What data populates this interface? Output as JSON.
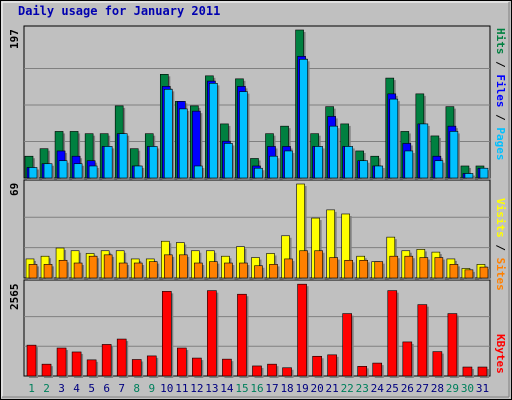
{
  "chart_data": [
    {
      "type": "bar",
      "title": "Daily usage for January 2011",
      "ylabel_max": "197",
      "legend": [
        "Pages",
        "Files",
        "Hits"
      ],
      "colors": {
        "hits": "#008040",
        "files": "#0000FF",
        "pages": "#00C0FF"
      },
      "categories": [
        "1",
        "2",
        "3",
        "4",
        "5",
        "6",
        "7",
        "8",
        "9",
        "10",
        "11",
        "12",
        "13",
        "14",
        "15",
        "16",
        "17",
        "18",
        "19",
        "20",
        "21",
        "22",
        "23",
        "24",
        "25",
        "26",
        "27",
        "28",
        "29",
        "30",
        "31"
      ],
      "weekend_days": [
        "1",
        "2",
        "8",
        "9",
        "15",
        "16",
        "22",
        "23",
        "29",
        "30"
      ],
      "ylim": [
        0,
        197
      ],
      "series": [
        {
          "name": "Hits",
          "values": [
            29,
            39,
            62,
            62,
            59,
            59,
            96,
            39,
            59,
            138,
            102,
            96,
            136,
            72,
            132,
            26,
            59,
            69,
            197,
            59,
            95,
            72,
            36,
            29,
            133,
            62,
            112,
            56,
            95,
            16,
            16
          ]
        },
        {
          "name": "Files",
          "values": [
            14,
            19,
            36,
            29,
            23,
            42,
            59,
            16,
            42,
            122,
            102,
            89,
            129,
            49,
            122,
            16,
            42,
            42,
            162,
            42,
            82,
            42,
            23,
            16,
            112,
            46,
            72,
            29,
            69,
            6,
            13
          ]
        },
        {
          "name": "Pages",
          "values": [
            14,
            19,
            23,
            19,
            16,
            42,
            59,
            16,
            42,
            118,
            92,
            16,
            126,
            46,
            115,
            13,
            29,
            36,
            158,
            42,
            69,
            42,
            23,
            16,
            105,
            36,
            72,
            23,
            62,
            6,
            13
          ]
        }
      ]
    },
    {
      "type": "bar",
      "ylabel_max": "69",
      "legend": [
        "Sites",
        "Visits"
      ],
      "colors": {
        "visits": "#FFFF00",
        "sites": "#FF8000"
      },
      "categories": [
        "1",
        "2",
        "3",
        "4",
        "5",
        "6",
        "7",
        "8",
        "9",
        "10",
        "11",
        "12",
        "13",
        "14",
        "15",
        "16",
        "17",
        "18",
        "19",
        "20",
        "21",
        "22",
        "23",
        "24",
        "25",
        "26",
        "27",
        "28",
        "29",
        "30",
        "31"
      ],
      "ylim": [
        0,
        69
      ],
      "series": [
        {
          "name": "Visits",
          "values": [
            14,
            16,
            22,
            20,
            18,
            20,
            20,
            14,
            14,
            27,
            26,
            20,
            20,
            16,
            23,
            15,
            18,
            31,
            69,
            44,
            50,
            47,
            16,
            12,
            30,
            20,
            21,
            19,
            14,
            7,
            10
          ]
        },
        {
          "name": "Sites",
          "values": [
            10,
            10,
            13,
            11,
            16,
            17,
            11,
            11,
            12,
            17,
            17,
            11,
            12,
            11,
            11,
            9,
            10,
            14,
            20,
            20,
            15,
            13,
            13,
            12,
            16,
            16,
            15,
            15,
            10,
            6,
            8
          ]
        }
      ]
    },
    {
      "type": "bar",
      "ylabel_max": "2565",
      "legend": [
        "KBytes"
      ],
      "colors": {
        "kbytes": "#FF0000"
      },
      "categories": [
        "1",
        "2",
        "3",
        "4",
        "5",
        "6",
        "7",
        "8",
        "9",
        "10",
        "11",
        "12",
        "13",
        "14",
        "15",
        "16",
        "17",
        "18",
        "19",
        "20",
        "21",
        "22",
        "23",
        "24",
        "25",
        "26",
        "27",
        "28",
        "29",
        "30",
        "31"
      ],
      "ylim": [
        0,
        2565
      ],
      "series": [
        {
          "name": "KBytes",
          "values": [
            860,
            330,
            780,
            670,
            450,
            880,
            1030,
            460,
            560,
            2360,
            780,
            500,
            2380,
            470,
            2280,
            280,
            330,
            230,
            2560,
            550,
            590,
            1740,
            270,
            360,
            2380,
            950,
            1990,
            680,
            1740,
            250,
            250
          ]
        }
      ]
    }
  ]
}
